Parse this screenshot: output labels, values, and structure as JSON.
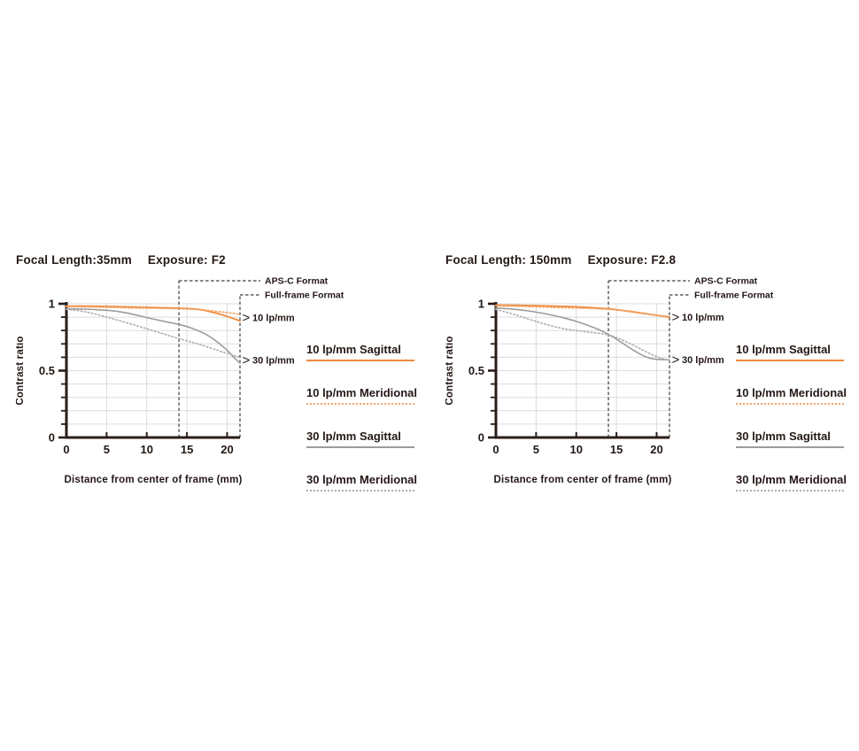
{
  "colors": {
    "background": "#FFFFFF",
    "orange": "#EE8A3D",
    "orange_light": "#F2A466",
    "gray": "#9C9C9C",
    "gray_light": "#ADADAD",
    "axis": "#2B1D17",
    "grid": "#DCDCDC",
    "dashed": "#3C3C3C",
    "text": "#231815"
  },
  "format_labels": {
    "apsc": "APS-C Format",
    "fullframe": "Full-frame Format"
  },
  "legend": {
    "items": [
      {
        "label": "10 lp/mm Sagittal",
        "style": "orange-solid"
      },
      {
        "label": "10 lp/mm Meridional",
        "style": "orange-dotted"
      },
      {
        "label": "30 lp/mm Sagittal",
        "style": "gray-solid"
      },
      {
        "label": "30 lp/mm Meridional",
        "style": "gray-dotted"
      }
    ]
  },
  "chart_data": [
    {
      "type": "line",
      "title_focal": "Focal Length:35mm",
      "title_exposure": "Exposure: F2",
      "xlabel": "Distance from center of frame (mm)",
      "ylabel": "Contrast ratio",
      "xlim": [
        0,
        21.6
      ],
      "ylim": [
        0,
        1
      ],
      "grid": true,
      "y_minor_step": 0.1,
      "xticks": [
        {
          "v": 0,
          "label": "0"
        },
        {
          "v": 5,
          "label": "5"
        },
        {
          "v": 10,
          "label": "10"
        },
        {
          "v": 15,
          "label": "15"
        },
        {
          "v": 20,
          "label": "20"
        }
      ],
      "yticks": [
        {
          "v": 0,
          "label": "0"
        },
        {
          "v": 0.5,
          "label": "0.5"
        },
        {
          "v": 1,
          "label": "1"
        }
      ],
      "apsc_line_mm": 14,
      "fullframe_line_mm": 21.6,
      "annotations": [
        {
          "label": "10 lp/mm",
          "y": 0.897
        },
        {
          "label": "30 lp/mm",
          "y": 0.579
        }
      ],
      "series": [
        {
          "name": "10 lp/mm Sagittal",
          "style": "orange-solid",
          "points": [
            [
              0,
              0.982
            ],
            [
              2,
              0.982
            ],
            [
              4,
              0.981
            ],
            [
              6,
              0.979
            ],
            [
              8,
              0.976
            ],
            [
              10,
              0.973
            ],
            [
              12,
              0.97
            ],
            [
              14,
              0.967
            ],
            [
              15.5,
              0.963
            ],
            [
              17,
              0.953
            ],
            [
              18.5,
              0.932
            ],
            [
              20,
              0.906
            ],
            [
              21.6,
              0.872
            ]
          ]
        },
        {
          "name": "10 lp/mm Meridional",
          "style": "orange-dotted",
          "points": [
            [
              0,
              0.978
            ],
            [
              2,
              0.977
            ],
            [
              4,
              0.975
            ],
            [
              6,
              0.972
            ],
            [
              8,
              0.969
            ],
            [
              10,
              0.967
            ],
            [
              12,
              0.965
            ],
            [
              14,
              0.963
            ],
            [
              16,
              0.958
            ],
            [
              18,
              0.948
            ],
            [
              20,
              0.934
            ],
            [
              21.6,
              0.921
            ]
          ]
        },
        {
          "name": "30 lp/mm Sagittal",
          "style": "gray-solid",
          "points": [
            [
              0,
              0.962
            ],
            [
              2,
              0.96
            ],
            [
              4,
              0.955
            ],
            [
              6,
              0.946
            ],
            [
              8,
              0.925
            ],
            [
              10,
              0.897
            ],
            [
              12,
              0.87
            ],
            [
              14,
              0.846
            ],
            [
              15.5,
              0.82
            ],
            [
              17,
              0.783
            ],
            [
              18,
              0.748
            ],
            [
              19,
              0.703
            ],
            [
              20,
              0.652
            ],
            [
              21,
              0.59
            ],
            [
              21.6,
              0.556
            ]
          ]
        },
        {
          "name": "30 lp/mm Meridional",
          "style": "gray-dotted",
          "points": [
            [
              0,
              0.958
            ],
            [
              2,
              0.944
            ],
            [
              4,
              0.917
            ],
            [
              6,
              0.884
            ],
            [
              8,
              0.849
            ],
            [
              10,
              0.813
            ],
            [
              12,
              0.776
            ],
            [
              14,
              0.74
            ],
            [
              16,
              0.706
            ],
            [
              18,
              0.668
            ],
            [
              19.5,
              0.638
            ],
            [
              20.7,
              0.615
            ],
            [
              21.6,
              0.601
            ]
          ]
        }
      ]
    },
    {
      "type": "line",
      "title_focal": "Focal Length: 150mm",
      "title_exposure": "Exposure: F2.8",
      "xlabel": "Distance from center of frame (mm)",
      "ylabel": "Contrast ratio",
      "xlim": [
        0,
        21.6
      ],
      "ylim": [
        0,
        1
      ],
      "grid": true,
      "y_minor_step": 0.1,
      "xticks": [
        {
          "v": 0,
          "label": "0"
        },
        {
          "v": 5,
          "label": "5"
        },
        {
          "v": 10,
          "label": "10"
        },
        {
          "v": 15,
          "label": "15"
        },
        {
          "v": 20,
          "label": "20"
        }
      ],
      "yticks": [
        {
          "v": 0,
          "label": "0"
        },
        {
          "v": 0.5,
          "label": "0.5"
        },
        {
          "v": 1,
          "label": "1"
        }
      ],
      "apsc_line_mm": 14,
      "fullframe_line_mm": 21.6,
      "annotations": [
        {
          "label": "10 lp/mm",
          "y": 0.9
        },
        {
          "label": "30 lp/mm",
          "y": 0.582
        }
      ],
      "series": [
        {
          "name": "10 lp/mm Sagittal",
          "style": "orange-solid",
          "points": [
            [
              0,
              0.99
            ],
            [
              2,
              0.989
            ],
            [
              4,
              0.987
            ],
            [
              6,
              0.984
            ],
            [
              8,
              0.981
            ],
            [
              10,
              0.977
            ],
            [
              12,
              0.971
            ],
            [
              14,
              0.962
            ],
            [
              16,
              0.948
            ],
            [
              18,
              0.931
            ],
            [
              20,
              0.914
            ],
            [
              21.6,
              0.901
            ]
          ]
        },
        {
          "name": "10 lp/mm Meridional",
          "style": "orange-dotted",
          "points": [
            [
              0,
              0.984
            ],
            [
              2,
              0.982
            ],
            [
              4,
              0.979
            ],
            [
              6,
              0.975
            ],
            [
              8,
              0.971
            ],
            [
              10,
              0.968
            ],
            [
              12,
              0.964
            ],
            [
              14,
              0.959
            ],
            [
              16,
              0.949
            ],
            [
              18,
              0.934
            ],
            [
              20,
              0.913
            ],
            [
              21.6,
              0.896
            ]
          ]
        },
        {
          "name": "30 lp/mm Sagittal",
          "style": "gray-solid",
          "points": [
            [
              0,
              0.968
            ],
            [
              2,
              0.961
            ],
            [
              4,
              0.947
            ],
            [
              6,
              0.927
            ],
            [
              8,
              0.901
            ],
            [
              10,
              0.868
            ],
            [
              12,
              0.826
            ],
            [
              13.5,
              0.787
            ],
            [
              15,
              0.736
            ],
            [
              16.5,
              0.676
            ],
            [
              18,
              0.622
            ],
            [
              19,
              0.596
            ],
            [
              20,
              0.585
            ],
            [
              21.6,
              0.581
            ]
          ]
        },
        {
          "name": "30 lp/mm Meridional",
          "style": "gray-dotted",
          "points": [
            [
              0,
              0.958
            ],
            [
              1.5,
              0.934
            ],
            [
              3,
              0.906
            ],
            [
              5,
              0.868
            ],
            [
              7,
              0.833
            ],
            [
              9,
              0.808
            ],
            [
              11,
              0.792
            ],
            [
              13,
              0.778
            ],
            [
              14.5,
              0.758
            ],
            [
              16,
              0.722
            ],
            [
              17.5,
              0.678
            ],
            [
              19,
              0.632
            ],
            [
              20.3,
              0.598
            ],
            [
              21.6,
              0.576
            ]
          ]
        }
      ]
    }
  ]
}
